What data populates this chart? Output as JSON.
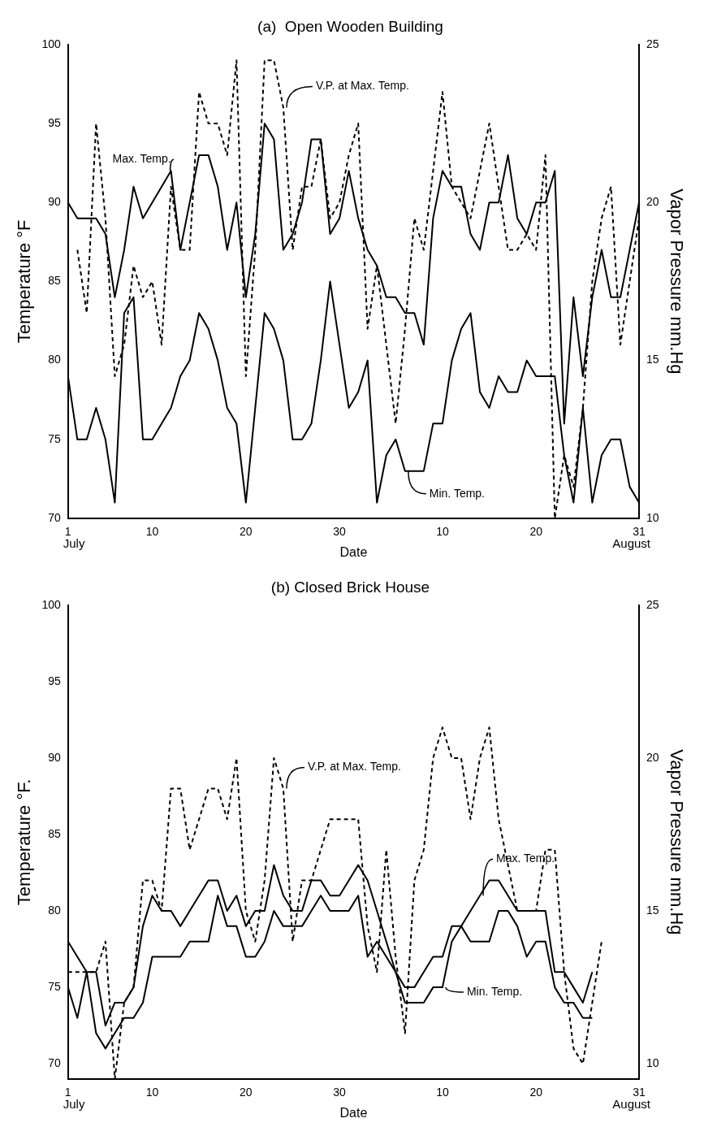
{
  "chart_data": [
    {
      "type": "line",
      "title": "(a)  Open Wooden Building",
      "xlabel": "Date",
      "ylabel": "Temperature °F",
      "y2label": "Vapor Pressure mm.Hg",
      "annotations": [
        "July",
        "August"
      ],
      "x": [
        "--07-01",
        "--07-02",
        "--07-03",
        "--07-04",
        "--07-05",
        "--07-06",
        "--07-07",
        "--07-08",
        "--07-09",
        "--07-10",
        "--07-11",
        "--07-12",
        "--07-13",
        "--07-14",
        "--07-15",
        "--07-16",
        "--07-17",
        "--07-18",
        "--07-19",
        "--07-20",
        "--07-21",
        "--07-22",
        "--07-23",
        "--07-24",
        "--07-25",
        "--07-26",
        "--07-27",
        "--07-28",
        "--07-29",
        "--07-30",
        "--07-31",
        "--08-01",
        "--08-02",
        "--08-03",
        "--08-04",
        "--08-05",
        "--08-06",
        "--08-07",
        "--08-08",
        "--08-09",
        "--08-10",
        "--08-11",
        "--08-12",
        "--08-13",
        "--08-14",
        "--08-15",
        "--08-16",
        "--08-17",
        "--08-18",
        "--08-19",
        "--08-20",
        "--08-21",
        "--08-22",
        "--08-23",
        "--08-24",
        "--08-25",
        "--08-26",
        "--08-27",
        "--08-28",
        "--08-29",
        "--08-30",
        "--08-31"
      ],
      "series": [
        {
          "name": "Max. Temp.",
          "color": "#000000",
          "line_style": "solid",
          "values": [
            90,
            89,
            89,
            89,
            88,
            84,
            87,
            91,
            89,
            90,
            91,
            92,
            87,
            90,
            93,
            93,
            91,
            87,
            90,
            84,
            88,
            95,
            94,
            87,
            88,
            90,
            94,
            94,
            88,
            89,
            92,
            89,
            87,
            86,
            84,
            84,
            83,
            83,
            81,
            89,
            92,
            91,
            91,
            88,
            87,
            90,
            90,
            93,
            89,
            88,
            90,
            90,
            92,
            76,
            84,
            79,
            84,
            87,
            84,
            84,
            87,
            90
          ]
        },
        {
          "name": "Min. Temp.",
          "color": "#000000",
          "line_style": "solid",
          "values": [
            79,
            75,
            75,
            77,
            75,
            71,
            83,
            84,
            75,
            75,
            76,
            77,
            79,
            80,
            83,
            82,
            80,
            77,
            76,
            71,
            77,
            83,
            82,
            80,
            75,
            75,
            76,
            80,
            85,
            81,
            77,
            78,
            80,
            71,
            74,
            75,
            73,
            73,
            73,
            76,
            76,
            80,
            82,
            83,
            78,
            77,
            79,
            78,
            78,
            80,
            79,
            79,
            79,
            74,
            71,
            77,
            71,
            74,
            75,
            75,
            72,
            71
          ]
        },
        {
          "name": "V.P. at Max. Temp.",
          "color": "#000000",
          "line_style": "dashed",
          "axis": "y2",
          "values": [
            null,
            18.5,
            16.5,
            22.5,
            19.5,
            14.5,
            15.5,
            18,
            17,
            17.5,
            15.5,
            20.5,
            18.5,
            18.5,
            23.5,
            22.5,
            22.5,
            21.5,
            24.5,
            14.5,
            18.5,
            24.5,
            24.5,
            23,
            18.5,
            20.5,
            20.5,
            22,
            19.5,
            20,
            21.5,
            22.5,
            16,
            18,
            15.5,
            13,
            16,
            19.5,
            18.5,
            21,
            23.5,
            20.5,
            20,
            19.5,
            21,
            22.5,
            20.5,
            18.5,
            18.5,
            19,
            18.5,
            21.5,
            10,
            12,
            11,
            13.5,
            17.5,
            19.5,
            20.5,
            15.5,
            17.5,
            19.5
          ]
        }
      ],
      "xlim": [
        "--07-01",
        "--08-31"
      ],
      "xticks": [
        {
          "value": "--07-01",
          "label": "1"
        },
        {
          "value": "--07-10",
          "label": "10"
        },
        {
          "value": "--07-20",
          "label": "20"
        },
        {
          "value": "--07-30",
          "label": "30"
        },
        {
          "value": "--08-10",
          "label": "10"
        },
        {
          "value": "--08-20",
          "label": "20"
        },
        {
          "value": "--08-31",
          "label": "31"
        }
      ],
      "ylim": [
        70,
        100
      ],
      "yticks": [
        70,
        75,
        80,
        85,
        90,
        95,
        100
      ],
      "y2lim": [
        10,
        25
      ],
      "y2ticks": [
        10,
        15,
        20,
        25
      ],
      "grid": false,
      "marker": "none"
    },
    {
      "type": "line",
      "title": "(b) Closed Brick House",
      "xlabel": "Date",
      "ylabel": "Temperature °F.",
      "y2label": "Vapor Pressure mm.Hg",
      "annotations": [
        "July",
        "August"
      ],
      "x": [
        "--07-01",
        "--07-02",
        "--07-03",
        "--07-04",
        "--07-05",
        "--07-06",
        "--07-07",
        "--07-08",
        "--07-09",
        "--07-10",
        "--07-11",
        "--07-12",
        "--07-13",
        "--07-14",
        "--07-15",
        "--07-16",
        "--07-17",
        "--07-18",
        "--07-19",
        "--07-20",
        "--07-21",
        "--07-22",
        "--07-23",
        "--07-24",
        "--07-25",
        "--07-26",
        "--07-27",
        "--07-28",
        "--07-29",
        "--07-30",
        "--07-31",
        "--08-01",
        "--08-02",
        "--08-03",
        "--08-04",
        "--08-05",
        "--08-06",
        "--08-07",
        "--08-08",
        "--08-09",
        "--08-10",
        "--08-11",
        "--08-12",
        "--08-13",
        "--08-14",
        "--08-15",
        "--08-16",
        "--08-17",
        "--08-18",
        "--08-19",
        "--08-20",
        "--08-21",
        "--08-22",
        "--08-23",
        "--08-24",
        "--08-25",
        "--08-26",
        "--08-27"
      ],
      "series": [
        {
          "name": "Max. Temp.",
          "color": "#000000",
          "line_style": "solid",
          "values": [
            78,
            77,
            76,
            76,
            72.5,
            74,
            74,
            75,
            79,
            81,
            80,
            80,
            79,
            80,
            81,
            82,
            82,
            80,
            81,
            79,
            80,
            80,
            83,
            81,
            80,
            80,
            82,
            82,
            81,
            81,
            82,
            83,
            82,
            80,
            78,
            76,
            75,
            75,
            76,
            77,
            77,
            79,
            79,
            80,
            81,
            82,
            82,
            81,
            80,
            80,
            80,
            80,
            76,
            76,
            75,
            74,
            76,
            null
          ]
        },
        {
          "name": "Min. Temp.",
          "color": "#000000",
          "line_style": "solid",
          "values": [
            75,
            73,
            76,
            72,
            71,
            72,
            73,
            73,
            74,
            77,
            77,
            77,
            77,
            78,
            78,
            78,
            81,
            79,
            79,
            77,
            77,
            78,
            80,
            79,
            79,
            79,
            80,
            81,
            80,
            80,
            80,
            81,
            77,
            78,
            77,
            76,
            74,
            74,
            74,
            75,
            75,
            78,
            79,
            78,
            78,
            78,
            80,
            80,
            79,
            77,
            78,
            78,
            75,
            74,
            74,
            73,
            73,
            null
          ]
        },
        {
          "name": "V.P. at Max. Temp.",
          "color": "#000000",
          "line_style": "dashed",
          "axis": "y2",
          "values": [
            13,
            13,
            13,
            13,
            14,
            9.5,
            12,
            12.5,
            16,
            16,
            15,
            19,
            19,
            17,
            18,
            19,
            19,
            18,
            20,
            15,
            14,
            16,
            20,
            19,
            14,
            16,
            16,
            17,
            18,
            18,
            18,
            18,
            14.5,
            13,
            17,
            13.5,
            11,
            16,
            17,
            20,
            21,
            20,
            20,
            18,
            20,
            21,
            18,
            16.5,
            15,
            15,
            15,
            17,
            17,
            13,
            10.5,
            10,
            12,
            14
          ]
        }
      ],
      "xlim": [
        "--07-01",
        "--08-31"
      ],
      "xticks": [
        {
          "value": "--07-01",
          "label": "1"
        },
        {
          "value": "--07-10",
          "label": "10"
        },
        {
          "value": "--07-20",
          "label": "20"
        },
        {
          "value": "--07-30",
          "label": "30"
        },
        {
          "value": "--08-10",
          "label": "10"
        },
        {
          "value": "--08-20",
          "label": "20"
        },
        {
          "value": "--08-31",
          "label": "31"
        }
      ],
      "ylim": [
        69,
        100
      ],
      "yticks": [
        70,
        75,
        80,
        85,
        90,
        95,
        100
      ],
      "y2lim": [
        9.5,
        25
      ],
      "y2ticks": [
        10,
        15,
        20,
        25
      ],
      "grid": false,
      "marker": "none"
    }
  ]
}
